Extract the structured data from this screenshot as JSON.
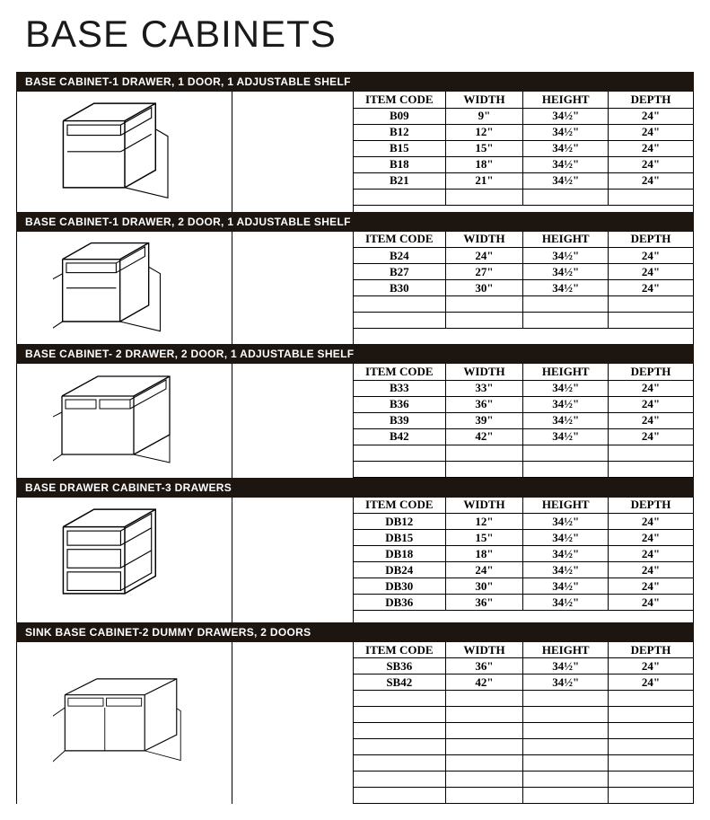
{
  "page_title": "BASE CABINETS",
  "page_title_fontsize": 42,
  "colors": {
    "section_bar_bg": "#1c1510",
    "section_bar_text": "#ffffff",
    "page_bg": "#ffffff",
    "border": "#000000",
    "text": "#1a1a1a"
  },
  "columns": [
    "ITEM CODE",
    "WIDTH",
    "HEIGHT",
    "DEPTH"
  ],
  "sections": [
    {
      "title": "BASE CABINET-1 DRAWER, 1 DOOR, 1 ADJUSTABLE SHELF",
      "rows": [
        {
          "code": "B09",
          "width": "9\"",
          "height": "34½\"",
          "depth": "24\""
        },
        {
          "code": "B12",
          "width": "12\"",
          "height": "34½\"",
          "depth": "24\""
        },
        {
          "code": "B15",
          "width": "15\"",
          "height": "34½\"",
          "depth": "24\""
        },
        {
          "code": "B18",
          "width": "18\"",
          "height": "34½\"",
          "depth": "24\""
        },
        {
          "code": "B21",
          "width": "21\"",
          "height": "34½\"",
          "depth": "24\""
        }
      ],
      "blank_rows": 1,
      "illustration": "cab1"
    },
    {
      "title": "BASE CABINET-1 DRAWER, 2 DOOR, 1 ADJUSTABLE SHELF",
      "rows": [
        {
          "code": "B24",
          "width": "24\"",
          "height": "34½\"",
          "depth": "24\""
        },
        {
          "code": "B27",
          "width": "27\"",
          "height": "34½\"",
          "depth": "24\""
        },
        {
          "code": "B30",
          "width": "30\"",
          "height": "34½\"",
          "depth": "24\""
        }
      ],
      "blank_rows": 2,
      "illustration": "cab2"
    },
    {
      "title": "BASE CABINET- 2 DRAWER, 2 DOOR, 1 ADJUSTABLE SHELF",
      "rows": [
        {
          "code": "B33",
          "width": "33\"",
          "height": "34½\"",
          "depth": "24\""
        },
        {
          "code": "B36",
          "width": "36\"",
          "height": "34½\"",
          "depth": "24\""
        },
        {
          "code": "B39",
          "width": "39\"",
          "height": "34½\"",
          "depth": "24\""
        },
        {
          "code": "B42",
          "width": "42\"",
          "height": "34½\"",
          "depth": "24\""
        }
      ],
      "blank_rows": 2,
      "illustration": "cab3"
    },
    {
      "title": "BASE DRAWER CABINET-3 DRAWERS",
      "rows": [
        {
          "code": "DB12",
          "width": "12\"",
          "height": "34½\"",
          "depth": "24\""
        },
        {
          "code": "DB15",
          "width": "15\"",
          "height": "34½\"",
          "depth": "24\""
        },
        {
          "code": "DB18",
          "width": "18\"",
          "height": "34½\"",
          "depth": "24\""
        },
        {
          "code": "DB24",
          "width": "24\"",
          "height": "34½\"",
          "depth": "24\""
        },
        {
          "code": "DB30",
          "width": "30\"",
          "height": "34½\"",
          "depth": "24\""
        },
        {
          "code": "DB36",
          "width": "36\"",
          "height": "34½\"",
          "depth": "24\""
        }
      ],
      "blank_rows": 0,
      "illustration": "cab4"
    },
    {
      "title": "SINK BASE CABINET-2 DUMMY DRAWERS, 2 DOORS",
      "rows": [
        {
          "code": "SB36",
          "width": "36\"",
          "height": "34½\"",
          "depth": "24\""
        },
        {
          "code": "SB42",
          "width": "42\"",
          "height": "34½\"",
          "depth": "24\""
        }
      ],
      "blank_rows": 7,
      "illustration": "cab5"
    }
  ]
}
